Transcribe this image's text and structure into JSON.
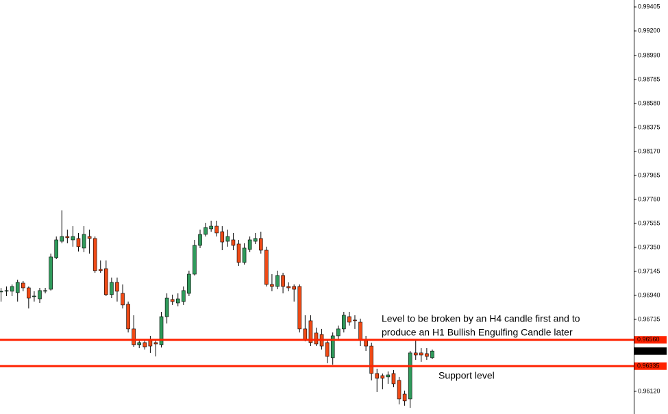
{
  "chart_data": {
    "type": "candlestick",
    "open": [
      0.96975,
      0.96981,
      0.96975,
      0.96963,
      0.97045,
      0.97004,
      0.96934,
      0.9691,
      0.96981,
      0.96992,
      0.97262,
      0.97402,
      0.97443,
      0.97414,
      0.97426,
      0.97344,
      0.97443,
      0.97426,
      0.97162,
      0.97168,
      0.96946,
      0.97051,
      0.96957,
      0.96864,
      0.96653,
      0.96518,
      0.96536,
      0.96559,
      0.96536,
      0.96518,
      0.96758,
      0.96905,
      0.96875,
      0.96887,
      0.96957,
      0.97121,
      0.97367,
      0.97461,
      0.97508,
      0.97531,
      0.97484,
      0.97402,
      0.97414,
      0.97379,
      0.97221,
      0.97332,
      0.97402,
      0.97426,
      0.97326,
      0.97033,
      0.97016,
      0.9711,
      0.97016,
      0.97016,
      0.97016,
      0.96653,
      0.96723,
      0.96618,
      0.96606,
      0.96536,
      0.96407,
      0.96594,
      0.96653,
      0.96758,
      0.96729,
      0.96711,
      0.96565,
      0.96506,
      0.96272,
      0.96254,
      0.96243,
      0.96272,
      0.96213,
      0.96096,
      0.96055,
      0.96448,
      0.96448,
      0.96442,
      0.96407
    ],
    "high": [
      0.97004,
      0.97016,
      0.97033,
      0.97074,
      0.97063,
      0.97016,
      0.96975,
      0.97004,
      0.97004,
      0.97297,
      0.97443,
      0.97666,
      0.97502,
      0.97531,
      0.97473,
      0.97531,
      0.97502,
      0.97443,
      0.97238,
      0.97238,
      0.97092,
      0.97092,
      0.97033,
      0.96887,
      0.9677,
      0.96565,
      0.96565,
      0.96594,
      0.96565,
      0.96799,
      0.96957,
      0.96946,
      0.96957,
      0.97016,
      0.97151,
      0.97414,
      0.97502,
      0.9756,
      0.97578,
      0.97578,
      0.97531,
      0.97502,
      0.97473,
      0.97414,
      0.97385,
      0.97443,
      0.97473,
      0.97484,
      0.97356,
      0.97121,
      0.97151,
      0.97133,
      0.97051,
      0.97033,
      0.97033,
      0.9677,
      0.9677,
      0.96664,
      0.96653,
      0.96565,
      0.96623,
      0.96682,
      0.96799,
      0.96799,
      0.9677,
      0.96741,
      0.96594,
      0.96536,
      0.96313,
      0.96272,
      0.9629,
      0.96301,
      0.96243,
      0.96126,
      0.96465,
      0.96565,
      0.96489,
      0.96489,
      0.96477
    ],
    "low": [
      0.96887,
      0.96934,
      0.96934,
      0.96887,
      0.96975,
      0.96828,
      0.96887,
      0.96875,
      0.96957,
      0.96981,
      0.9725,
      0.97385,
      0.97385,
      0.97356,
      0.97315,
      0.97309,
      0.97297,
      0.97133,
      0.97133,
      0.96934,
      0.96916,
      0.96887,
      0.96828,
      0.96623,
      0.965,
      0.96489,
      0.96477,
      0.96448,
      0.96418,
      0.96495,
      0.967,
      0.96858,
      0.96846,
      0.96858,
      0.96934,
      0.9711,
      0.97344,
      0.97443,
      0.97484,
      0.97443,
      0.97326,
      0.97356,
      0.97326,
      0.97191,
      0.97203,
      0.97309,
      0.97379,
      0.97297,
      0.97016,
      0.96975,
      0.96992,
      0.96957,
      0.96975,
      0.96887,
      0.96623,
      0.96547,
      0.96506,
      0.96506,
      0.96477,
      0.9636,
      0.96348,
      0.96565,
      0.96623,
      0.96682,
      0.96653,
      0.96506,
      0.96465,
      0.96213,
      0.96114,
      0.96137,
      0.96184,
      0.96155,
      0.96008,
      0.95997,
      0.95979,
      0.96389,
      0.96372,
      0.96389,
      0.96395
    ],
    "close": [
      0.96975,
      0.96981,
      0.97016,
      0.97051,
      0.97004,
      0.96916,
      0.96934,
      0.96981,
      0.96981,
      0.97268,
      0.97414,
      0.97443,
      0.97432,
      0.97443,
      0.97356,
      0.97461,
      0.97426,
      0.97151,
      0.97151,
      0.96946,
      0.97051,
      0.96975,
      0.96858,
      0.96653,
      0.96518,
      0.96536,
      0.965,
      0.96506,
      0.96524,
      0.96758,
      0.96916,
      0.96887,
      0.9691,
      0.96981,
      0.97121,
      0.97367,
      0.97461,
      0.9752,
      0.97531,
      0.97473,
      0.97396,
      0.97443,
      0.97367,
      0.97221,
      0.97344,
      0.97414,
      0.97426,
      0.97326,
      0.97033,
      0.97016,
      0.9711,
      0.97016,
      0.97004,
      0.96992,
      0.96653,
      0.96565,
      0.96536,
      0.96524,
      0.96506,
      0.96418,
      0.96594,
      0.96653,
      0.9677,
      0.96711,
      0.96723,
      0.96565,
      0.96506,
      0.96272,
      0.96231,
      0.96231,
      0.9626,
      0.96184,
      0.96055,
      0.96038,
      0.96448,
      0.9643,
      0.9643,
      0.96418,
      0.96464
    ],
    "up_color": "#2f9a5b",
    "down_color": "#ef4a16",
    "ylim": [
      0.95926,
      0.99464
    ],
    "yticks": [
      {
        "value": 0.99405,
        "label": "0.99405"
      },
      {
        "value": 0.992,
        "label": "0.99200"
      },
      {
        "value": 0.9899,
        "label": "0.98990"
      },
      {
        "value": 0.98785,
        "label": "0.98785"
      },
      {
        "value": 0.9858,
        "label": "0.98580"
      },
      {
        "value": 0.98375,
        "label": "0.98375"
      },
      {
        "value": 0.9817,
        "label": "0.98170"
      },
      {
        "value": 0.97965,
        "label": "0.97965"
      },
      {
        "value": 0.9776,
        "label": "0.97760"
      },
      {
        "value": 0.97555,
        "label": "0.97555"
      },
      {
        "value": 0.9735,
        "label": "0.97350"
      },
      {
        "value": 0.97145,
        "label": "0.97145"
      },
      {
        "value": 0.9694,
        "label": "0.96940"
      },
      {
        "value": 0.96735,
        "label": "0.96735"
      },
      {
        "value": 0.9612,
        "label": "0.96120"
      }
    ],
    "levels": [
      {
        "value": 0.9656,
        "label": "0.96560",
        "color": "#ff2200"
      },
      {
        "value": 0.96335,
        "label": "0.96335",
        "color": "#ff2200"
      }
    ],
    "current_price": {
      "value": 0.96464,
      "label": "0.96464",
      "color": "#000000"
    },
    "annotations": [
      "Level to be broken by an H4 candle first and to",
      "produce an H1 Bullish Engulfing Candle later",
      "Support level"
    ]
  }
}
